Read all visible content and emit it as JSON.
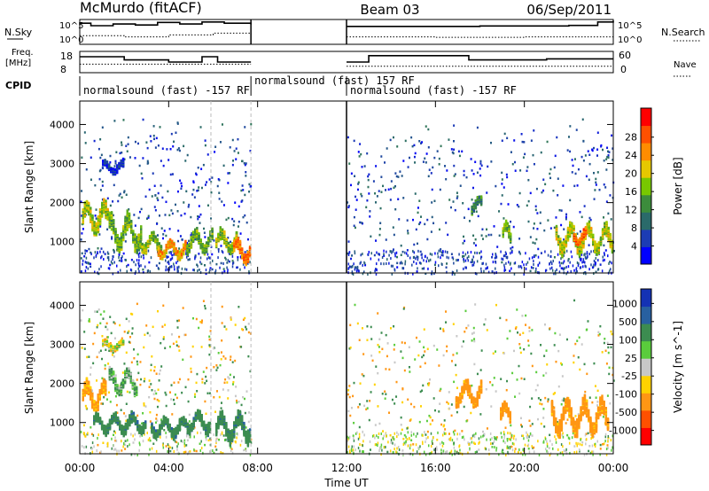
{
  "header": {
    "station": "McMurdo (fitACF)",
    "beam": "Beam 03",
    "date": "06/Sep/2011"
  },
  "status_panel": {
    "nsky_label": "N.Sky",
    "nsearch_label": "N.Search",
    "nsky_ticks": [
      "10^5",
      "10^0"
    ],
    "nsearch_ticks": [
      "10^5",
      "10^0"
    ],
    "freq_label_line1": "Freq.",
    "freq_label_line2": "[MHz]",
    "freq_ticks": [
      "18",
      "8"
    ],
    "nave_label": "Nave",
    "nave_ticks": [
      "60",
      "0"
    ],
    "cpid_label": "CPID",
    "cpid_segments": [
      {
        "text": "normalsound (fast) -157 RF",
        "start": 0,
        "end": 7.7
      },
      {
        "text": "normalsound (fast) 157 RF",
        "start": 7.7,
        "end": 12
      },
      {
        "text": "normalsound (fast) -157 RF",
        "start": 12,
        "end": 24
      }
    ]
  },
  "chart_data": [
    {
      "type": "heatmap",
      "quantity": "Power",
      "ylabel": "Slant Range [km]",
      "ylim": [
        200,
        4600
      ],
      "yticks": [
        1000,
        2000,
        3000,
        4000
      ],
      "xlim": [
        0,
        24
      ],
      "colorbar_label": "Power [dB]",
      "colorbar_ticks": [
        "4",
        "8",
        "12",
        "16",
        "20",
        "24",
        "28"
      ],
      "colorbar_colors": [
        "#0000ff",
        "#1c3cb4",
        "#2a6a6a",
        "#3c8c3c",
        "#78c800",
        "#e6c800",
        "#ff8c00",
        "#ff5000",
        "#ff0000"
      ],
      "regions": [
        {
          "x": [
            0.1,
            1.3
          ],
          "y": [
            1300,
            2300
          ],
          "level": 0.55
        },
        {
          "x": [
            1.3,
            2.8
          ],
          "y": [
            900,
            2000
          ],
          "level": 0.45
        },
        {
          "x": [
            2.6,
            3.7
          ],
          "y": [
            800,
            1400
          ],
          "level": 0.5
        },
        {
          "x": [
            3.5,
            4.8
          ],
          "y": [
            650,
            1200
          ],
          "level": 0.7
        },
        {
          "x": [
            4.8,
            6.0
          ],
          "y": [
            800,
            1500
          ],
          "level": 0.45
        },
        {
          "x": [
            6.1,
            7.1
          ],
          "y": [
            800,
            1500
          ],
          "level": 0.5
        },
        {
          "x": [
            6.9,
            7.7
          ],
          "y": [
            550,
            1300
          ],
          "level": 0.8
        },
        {
          "x": [
            1.0,
            2.0
          ],
          "y": [
            2800,
            3200
          ],
          "level": 0.1
        },
        {
          "x": [
            19.0,
            19.4
          ],
          "y": [
            1000,
            1700
          ],
          "level": 0.45
        },
        {
          "x": [
            17.6,
            18.1
          ],
          "y": [
            1800,
            2300
          ],
          "level": 0.3
        },
        {
          "x": [
            21.4,
            24.0
          ],
          "y": [
            800,
            1700
          ],
          "level": 0.55
        },
        {
          "x": [
            22.2,
            22.8
          ],
          "y": [
            1000,
            1500
          ],
          "level": 0.85
        }
      ]
    },
    {
      "type": "heatmap",
      "quantity": "Velocity",
      "ylabel": "Slant Range [km]",
      "ylim": [
        200,
        4600
      ],
      "yticks": [
        1000,
        2000,
        3000,
        4000
      ],
      "xlim": [
        0,
        24
      ],
      "colorbar_label": "Velocity [m s^-1]",
      "colorbar_ticks": [
        "1000",
        "500",
        "100",
        "25",
        "-25",
        "-100",
        "-500",
        "-1000"
      ],
      "colorbar_colors": [
        "#1432b4",
        "#2860a0",
        "#3c8c50",
        "#5acc3c",
        "#c8c8c8",
        "#ffd200",
        "#ff9614",
        "#ff5000",
        "#ff0000"
      ],
      "regions": [
        {
          "x": [
            0.1,
            1.2
          ],
          "y": [
            1400,
            2300
          ],
          "value": -150
        },
        {
          "x": [
            0.6,
            3.0
          ],
          "y": [
            800,
            1400
          ],
          "value": 400
        },
        {
          "x": [
            1.3,
            2.6
          ],
          "y": [
            1800,
            2600
          ],
          "value": 100
        },
        {
          "x": [
            3.2,
            4.9
          ],
          "y": [
            700,
            1300
          ],
          "value": 400
        },
        {
          "x": [
            4.9,
            5.9
          ],
          "y": [
            800,
            1500
          ],
          "value": 400
        },
        {
          "x": [
            6.1,
            7.7
          ],
          "y": [
            600,
            1500
          ],
          "value": 400
        },
        {
          "x": [
            1.0,
            2.0
          ],
          "y": [
            2900,
            3200
          ],
          "value": 0
        },
        {
          "x": [
            16.9,
            18.1
          ],
          "y": [
            1500,
            2300
          ],
          "value": -200
        },
        {
          "x": [
            18.9,
            19.4
          ],
          "y": [
            1000,
            1700
          ],
          "value": -200
        },
        {
          "x": [
            21.2,
            23.8
          ],
          "y": [
            800,
            1900
          ],
          "value": -200
        }
      ]
    }
  ],
  "status_series": {
    "nsky": [
      [
        0,
        0.85
      ],
      [
        0.5,
        0.75
      ],
      [
        1.5,
        0.82
      ],
      [
        2.5,
        0.78
      ],
      [
        3.5,
        0.88
      ],
      [
        4.5,
        0.82
      ],
      [
        5.5,
        0.9
      ],
      [
        6.5,
        0.85
      ],
      [
        7.7,
        0.8
      ],
      [
        12,
        0.72
      ],
      [
        15,
        0.72
      ],
      [
        18,
        0.74
      ],
      [
        20,
        0.74
      ],
      [
        22,
        0.76
      ],
      [
        23.3,
        0.9
      ],
      [
        24,
        0.95
      ]
    ],
    "nsearch": [
      [
        0,
        0.35
      ],
      [
        2,
        0.3
      ],
      [
        4,
        0.38
      ],
      [
        6,
        0.45
      ],
      [
        7.7,
        0.4
      ],
      [
        12,
        0.3
      ],
      [
        16,
        0.28
      ],
      [
        20,
        0.3
      ],
      [
        24,
        0.32
      ]
    ],
    "freq": [
      [
        0,
        0.75
      ],
      [
        2,
        0.6
      ],
      [
        4,
        0.5
      ],
      [
        5.5,
        0.75
      ],
      [
        6.2,
        0.5
      ],
      [
        7.7,
        0.5
      ],
      [
        12,
        0.5
      ],
      [
        13,
        0.8
      ],
      [
        16,
        0.8
      ],
      [
        17.5,
        0.6
      ],
      [
        19,
        0.6
      ],
      [
        21,
        0.65
      ],
      [
        24,
        0.65
      ]
    ],
    "nave": [
      [
        0,
        0.4
      ],
      [
        4,
        0.4
      ],
      [
        7.7,
        0.4
      ],
      [
        12,
        0.3
      ],
      [
        24,
        0.3
      ]
    ]
  },
  "xaxis": {
    "label": "Time UT",
    "ticks": [
      "00:00",
      "04:00",
      "08:00",
      "12:00",
      "16:00",
      "20:00",
      "00:00"
    ]
  }
}
